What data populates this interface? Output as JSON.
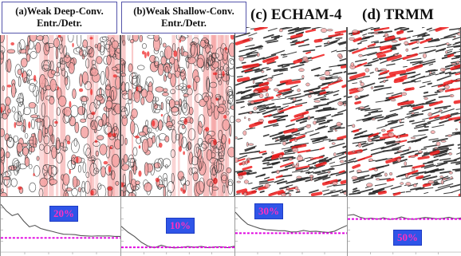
{
  "panels": {
    "a": {
      "label_line1": "(a)Weak Deep-Conv.",
      "label_line2": "Entr./Detr.",
      "percent": "20%"
    },
    "b": {
      "label_line1": "(b)Weak Shallow-Conv.",
      "label_line2": "Entr./Detr.",
      "percent": "10%"
    },
    "c": {
      "label": "(c) ECHAM-4",
      "percent": "30%"
    },
    "d": {
      "label": "(d) TRMM",
      "percent": "50%"
    }
  },
  "colors": {
    "contour": "#2a2a2a",
    "shading_light": "#f5a3a3",
    "shading_strong": "#ee1c1c",
    "reference_line": "#e000e0",
    "percent_box": "#2f55e8",
    "percent_text": "#ff2fc0"
  }
}
